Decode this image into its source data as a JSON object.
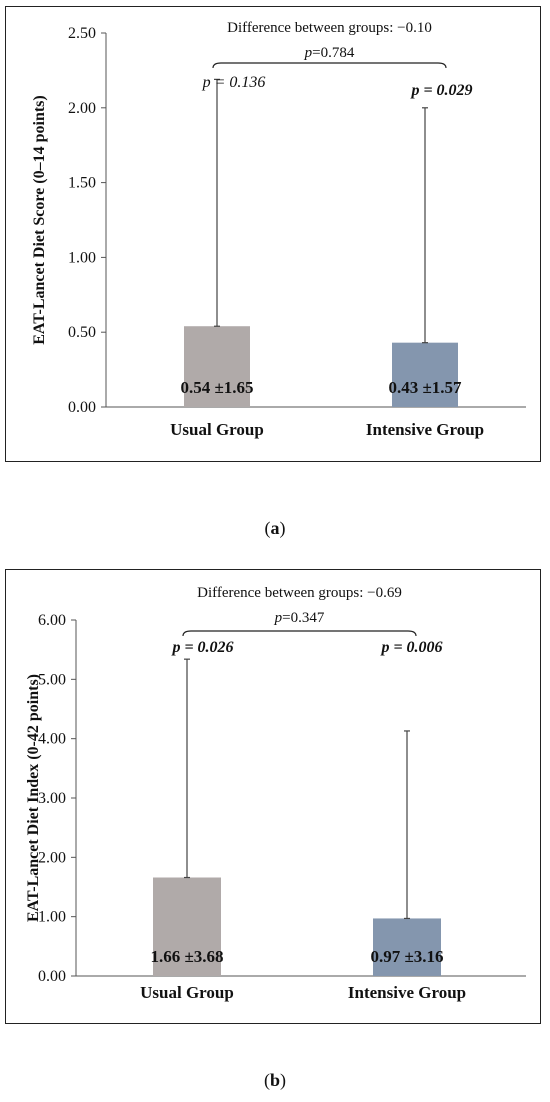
{
  "chart_data": [
    {
      "type": "bar",
      "panel_label": "a",
      "ylabel": "EAT-Lancet Diet Score (0–14 points)",
      "ylim": [
        0,
        2.5
      ],
      "yticks": [
        "0.00",
        "0.50",
        "1.00",
        "1.50",
        "2.00",
        "2.50"
      ],
      "categories": [
        "Usual Group",
        "Intensive Group"
      ],
      "values": [
        0.54,
        0.43
      ],
      "error_upper": [
        2.19,
        2.0
      ],
      "bar_labels": [
        "0.54 ±1.65",
        "0.43 ±1.57"
      ],
      "bar_colors": [
        "#b0aaa9",
        "#8496ae"
      ],
      "p_within": [
        {
          "prefix": "p",
          "text": " = 0.136",
          "bold": false
        },
        {
          "prefix": "p",
          "text": " = 0.029",
          "bold": true
        }
      ],
      "difference_text": "Difference between groups: −0.10",
      "p_between": {
        "prefix": "p",
        "text": "=0.784"
      },
      "grid": false
    },
    {
      "type": "bar",
      "panel_label": "b",
      "ylabel": "EAT-Lancet Diet Index (0-42 points)",
      "ylim": [
        0,
        6
      ],
      "yticks": [
        "0.00",
        "1.00",
        "2.00",
        "3.00",
        "4.00",
        "5.00",
        "6.00"
      ],
      "categories": [
        "Usual Group",
        "Intensive Group"
      ],
      "values": [
        1.66,
        0.97
      ],
      "error_upper": [
        5.34,
        4.13
      ],
      "bar_labels": [
        "1.66 ±3.68",
        "0.97 ±3.16"
      ],
      "bar_colors": [
        "#b0aaa9",
        "#8496ae"
      ],
      "p_within": [
        {
          "prefix": "p",
          "text": " = 0.026",
          "bold": true
        },
        {
          "prefix": "p",
          "text": " = 0.006",
          "bold": true
        }
      ],
      "difference_text": "Difference between groups: −0.69",
      "p_between": {
        "prefix": "p",
        "text": "=0.347"
      },
      "grid": false
    }
  ],
  "captions": [
    {
      "open": "(",
      "label": "a",
      "close": ")"
    },
    {
      "open": "(",
      "label": "b",
      "close": ")"
    }
  ]
}
